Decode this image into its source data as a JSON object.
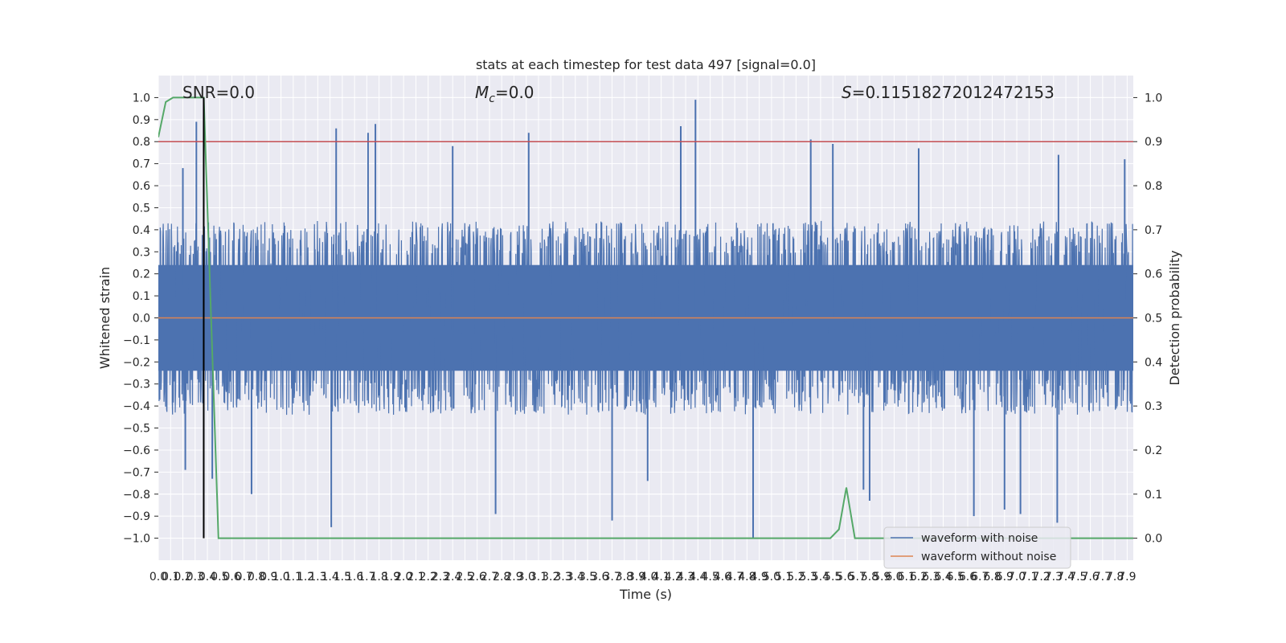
{
  "chart_data": {
    "type": "line",
    "title": "stats at each timestep for test data 497 [signal=0.0]",
    "xlabel": "Time (s)",
    "ylabel": "Whitened strain",
    "ylabel_right": "Detection probability",
    "xlim": [
      0.0,
      7.95
    ],
    "ylim": [
      -1.1,
      1.1
    ],
    "ylim_right": [
      -0.05,
      1.05
    ],
    "x_ticks": [
      0.0,
      0.1,
      0.2,
      0.3,
      0.4,
      0.5,
      0.6,
      0.7,
      0.8,
      0.9,
      1.0,
      1.1,
      1.2,
      1.3,
      1.4,
      1.5,
      1.6,
      1.7,
      1.8,
      1.9,
      2.0,
      2.1,
      2.2,
      2.3,
      2.4,
      2.5,
      2.6,
      2.7,
      2.8,
      2.9,
      3.0,
      3.1,
      3.2,
      3.3,
      3.4,
      3.5,
      3.6,
      3.7,
      3.8,
      3.9,
      4.0,
      4.1,
      4.2,
      4.3,
      4.4,
      4.5,
      4.6,
      4.7,
      4.8,
      4.9,
      5.0,
      5.1,
      5.2,
      5.3,
      5.4,
      5.5,
      5.6,
      5.7,
      5.8,
      5.9,
      6.0,
      6.1,
      6.2,
      6.3,
      6.4,
      6.5,
      6.6,
      6.7,
      6.8,
      6.9,
      7.0,
      7.1,
      7.2,
      7.3,
      7.4,
      7.5,
      7.6,
      7.7,
      7.8,
      7.9
    ],
    "x_tick_labels": [
      "0.0",
      "0.1",
      "0.2",
      "0.3",
      "0.4",
      "0.5",
      "0.6",
      "0.7",
      "0.8",
      "0.9",
      "1.0",
      "1.1",
      "1.2",
      "1.3",
      "1.4",
      "1.5",
      "1.6",
      "1.7",
      "1.8",
      "1.9",
      "2.0",
      "2.1",
      "2.2",
      "2.3",
      "2.4",
      "2.5",
      "2.6",
      "2.7",
      "2.8",
      "2.9",
      "3.0",
      "3.1",
      "3.2",
      "3.3",
      "3.4",
      "3.5",
      "3.6",
      "3.7",
      "3.8",
      "3.9",
      "4.0",
      "4.1",
      "4.2",
      "4.3",
      "4.4",
      "4.5",
      "4.6",
      "4.7",
      "4.8",
      "4.9",
      "5.0",
      "5.1",
      "5.2",
      "5.3",
      "5.4",
      "5.5",
      "5.6",
      "5.7",
      "5.8",
      "5.9",
      "6.0",
      "6.1",
      "6.2",
      "6.3",
      "6.4",
      "6.5",
      "6.6",
      "6.7",
      "6.8",
      "6.9",
      "7.0",
      "7.1",
      "7.2",
      "7.3",
      "7.4",
      "7.5",
      "7.6",
      "7.7",
      "7.8",
      "7.9"
    ],
    "y_ticks": [
      1.0,
      0.9,
      0.8,
      0.7,
      0.6,
      0.5,
      0.4,
      0.3,
      0.2,
      0.1,
      0.0,
      -0.1,
      -0.2,
      -0.3,
      -0.4,
      -0.5,
      -0.6,
      -0.7,
      -0.8,
      -0.9,
      -1.0
    ],
    "y_tick_labels": [
      "1.0",
      "0.9",
      "0.8",
      "0.7",
      "0.6",
      "0.5",
      "0.4",
      "0.3",
      "0.2",
      "0.1",
      "0.0",
      "−0.1",
      "−0.2",
      "−0.3",
      "−0.4",
      "−0.5",
      "−0.6",
      "−0.7",
      "−0.8",
      "−0.9",
      "−1.0"
    ],
    "y_right_ticks": [
      1.0,
      0.9,
      0.8,
      0.7,
      0.6,
      0.5,
      0.4,
      0.3,
      0.2,
      0.1,
      0.0
    ],
    "y_right_tick_labels": [
      "1.0",
      "0.9",
      "0.8",
      "0.7",
      "0.6",
      "0.5",
      "0.4",
      "0.3",
      "0.2",
      "0.1",
      "0.0"
    ],
    "grid": true,
    "background": "#eaeaf2",
    "legend_placement": "lower-right",
    "annotations": {
      "snr": "SNR=0.0",
      "mc_symbol": "M",
      "mc_sub": "c",
      "mc_value": "=0.0",
      "s_symbol": "S",
      "s_value": "=0.11518272012472153"
    },
    "series": [
      {
        "name": "waveform with noise",
        "axis": "left",
        "color": "#4c72b0",
        "sample_rate": 1024,
        "duration": 7.95,
        "envelope_upper_typical": 0.42,
        "envelope_lower_typical": -0.42,
        "peaks": [
          {
            "x": 0.31,
            "y": 0.89
          },
          {
            "x": 1.45,
            "y": 0.86
          },
          {
            "x": 1.71,
            "y": 0.84
          },
          {
            "x": 1.77,
            "y": 0.88
          },
          {
            "x": 3.02,
            "y": 0.84
          },
          {
            "x": 4.26,
            "y": 0.87
          },
          {
            "x": 4.38,
            "y": 0.99
          },
          {
            "x": 5.32,
            "y": 0.81
          },
          {
            "x": 5.5,
            "y": 0.79
          },
          {
            "x": 7.88,
            "y": 0.72
          },
          {
            "x": 6.2,
            "y": 0.77
          },
          {
            "x": 7.34,
            "y": 0.74
          },
          {
            "x": 0.2,
            "y": 0.68
          },
          {
            "x": 2.4,
            "y": 0.78
          }
        ],
        "troughs": [
          {
            "x": 1.41,
            "y": -0.95
          },
          {
            "x": 2.75,
            "y": -0.89
          },
          {
            "x": 3.7,
            "y": -0.92
          },
          {
            "x": 4.85,
            "y": -1.0
          },
          {
            "x": 5.8,
            "y": -0.83
          },
          {
            "x": 6.65,
            "y": -0.9
          },
          {
            "x": 6.9,
            "y": -0.87
          },
          {
            "x": 7.03,
            "y": -0.89
          },
          {
            "x": 7.33,
            "y": -0.93
          },
          {
            "x": 0.44,
            "y": -0.73
          },
          {
            "x": 0.22,
            "y": -0.69
          },
          {
            "x": 0.76,
            "y": -0.8
          },
          {
            "x": 5.75,
            "y": -0.78
          },
          {
            "x": 3.99,
            "y": -0.74
          }
        ]
      },
      {
        "name": "waveform without noise",
        "axis": "left",
        "color": "#dd8452",
        "x": [
          0.0,
          7.95
        ],
        "y": [
          0.0,
          0.0
        ]
      },
      {
        "name": "",
        "axis": "right",
        "color": "#55a868",
        "x": [
          0.0,
          0.06,
          0.12,
          0.25,
          0.37,
          0.49,
          5.48,
          5.55,
          5.61,
          5.68,
          7.95
        ],
        "y": [
          0.91,
          0.99,
          1.0,
          1.0,
          1.0,
          0.0,
          0.0,
          0.02,
          0.115,
          0.0,
          0.0
        ]
      }
    ],
    "threshold_line": {
      "axis": "right",
      "y": 0.9,
      "color": "#c44e52"
    },
    "marker_line": {
      "x": 0.37,
      "y_from": -1.0,
      "y_to": 1.0,
      "color": "#000000"
    }
  }
}
